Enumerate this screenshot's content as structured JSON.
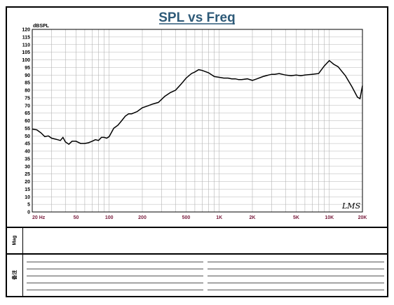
{
  "chart_data": {
    "type": "line",
    "title": "SPL vs Freq",
    "ylabel": "dBSPL",
    "xlabel": "",
    "xscale": "log",
    "xlim": [
      20,
      20000
    ],
    "ylim": [
      0,
      120
    ],
    "yticks": [
      0,
      5,
      10,
      15,
      20,
      25,
      30,
      35,
      40,
      45,
      50,
      55,
      60,
      65,
      70,
      75,
      80,
      85,
      90,
      95,
      100,
      105,
      110,
      115,
      120
    ],
    "xticks": [
      {
        "value": 20,
        "label": "20  Hz"
      },
      {
        "value": 50,
        "label": "50"
      },
      {
        "value": 100,
        "label": "100"
      },
      {
        "value": 200,
        "label": "200"
      },
      {
        "value": 500,
        "label": "500"
      },
      {
        "value": 1000,
        "label": "1K"
      },
      {
        "value": 2000,
        "label": "2K"
      },
      {
        "value": 5000,
        "label": "5K"
      },
      {
        "value": 10000,
        "label": "10K"
      },
      {
        "value": 20000,
        "label": "20K"
      }
    ],
    "grid": true,
    "series": [
      {
        "color": "#000000",
        "x": [
          20,
          22,
          24,
          26,
          28,
          30,
          32,
          34,
          36,
          38,
          40,
          43,
          46,
          50,
          55,
          60,
          65,
          70,
          75,
          80,
          85,
          90,
          95,
          100,
          110,
          120,
          130,
          140,
          150,
          160,
          180,
          200,
          220,
          250,
          280,
          320,
          360,
          400,
          450,
          500,
          560,
          600,
          650,
          700,
          800,
          900,
          1000,
          1100,
          1200,
          1300,
          1400,
          1500,
          1600,
          1800,
          2000,
          2200,
          2500,
          2800,
          3000,
          3200,
          3500,
          4000,
          4500,
          5000,
          5500,
          6000,
          7000,
          8000,
          9000,
          10000,
          11000,
          12000,
          14000,
          16000,
          18000,
          19000,
          20000
        ],
        "y": [
          54.5,
          54,
          52,
          49.5,
          50,
          48.5,
          48,
          47.5,
          47,
          49,
          46,
          44.5,
          46.5,
          46.5,
          45,
          45,
          45.5,
          46.5,
          47.5,
          47,
          49,
          49,
          48.5,
          49.5,
          55,
          57,
          60,
          63,
          64.5,
          64.5,
          66,
          68.5,
          69.5,
          71,
          72,
          76,
          78.5,
          80,
          84,
          88,
          91,
          92,
          93.5,
          93,
          91.5,
          89,
          88.5,
          88,
          88,
          87.5,
          87.5,
          87,
          87,
          87.5,
          86.5,
          87.5,
          89,
          90,
          90.5,
          90.5,
          91,
          90,
          89.5,
          90,
          89.5,
          90,
          90.5,
          91,
          96,
          99.5,
          97,
          95.5,
          89.5,
          82.5,
          75.5,
          74.5,
          83
        ]
      }
    ]
  },
  "logo_text": "LMS",
  "labels": {
    "mag": "Mag",
    "note": "备注"
  }
}
